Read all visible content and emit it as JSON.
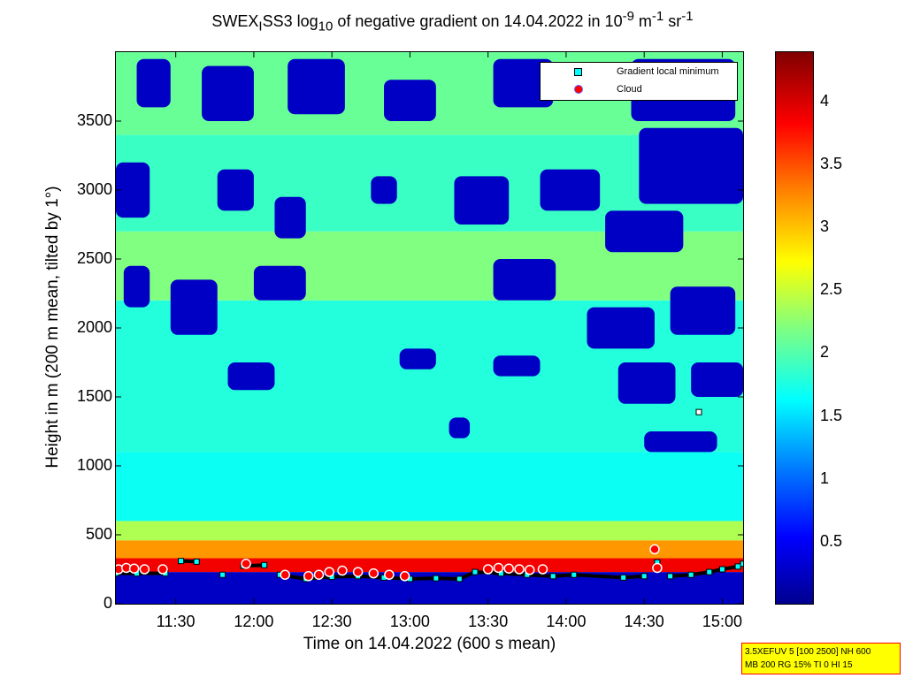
{
  "title_parts": {
    "t1": "SWEX",
    "t1_sub": "I",
    "t2": "SS3 log",
    "t2_sub": "10",
    "t3": " of negative gradient on 14.04.2022 in 10",
    "t3_sup": "-9",
    "t4": " m",
    "t4_sup": "-1",
    "t5": " sr",
    "t5_sup": "-1"
  },
  "xlabel": "Time on 14.04.2022 (600 s mean)",
  "ylabel": "Height in m (200 m mean, tilted by 1°)",
  "legend": {
    "min_label": "Gradient local minimum",
    "cloud_label": "Cloud",
    "min_color": "#00ffff",
    "cloud_color": "#ff0000"
  },
  "info": {
    "line1": "3.5XEFUV 5 [100 2500] NH 600",
    "line2": "MB 200 RG 15% TI 0 HI 15"
  },
  "chart_data": {
    "type": "heatmap",
    "x_tick_labels": [
      "11:30",
      "12:00",
      "12:30",
      "13:00",
      "13:30",
      "14:00",
      "14:30",
      "15:00"
    ],
    "x_tick_minutes": [
      690,
      720,
      750,
      780,
      810,
      840,
      870,
      900
    ],
    "xlim_minutes": [
      667,
      908
    ],
    "y_ticks": [
      0,
      500,
      1000,
      1500,
      2000,
      2500,
      3000,
      3500
    ],
    "ylim": [
      0,
      4000
    ],
    "colorbar_ticks": [
      0.5,
      1,
      1.5,
      2,
      2.5,
      3,
      3.5,
      4
    ],
    "colorbar_range": [
      0,
      4.4
    ],
    "colormap": "jet",
    "field_bands": [
      {
        "from": 0,
        "to": 230,
        "level": 0.3
      },
      {
        "from": 230,
        "to": 330,
        "level": 3.9
      },
      {
        "from": 330,
        "to": 460,
        "level": 3.2
      },
      {
        "from": 460,
        "to": 600,
        "level": 2.4
      },
      {
        "from": 600,
        "to": 1100,
        "level": 1.7
      },
      {
        "from": 1100,
        "to": 2200,
        "level": 1.8
      },
      {
        "from": 2200,
        "to": 2700,
        "level": 2.2
      },
      {
        "from": 2700,
        "to": 3400,
        "level": 1.9
      },
      {
        "from": 3400,
        "to": 4000,
        "level": 2.1
      }
    ],
    "low_patches": [
      {
        "x0": 675,
        "x1": 688,
        "y0": 3600,
        "y1": 3950
      },
      {
        "x0": 700,
        "x1": 720,
        "y0": 3500,
        "y1": 3900
      },
      {
        "x0": 733,
        "x1": 755,
        "y0": 3550,
        "y1": 3950
      },
      {
        "x0": 770,
        "x1": 790,
        "y0": 3500,
        "y1": 3800
      },
      {
        "x0": 812,
        "x1": 835,
        "y0": 3600,
        "y1": 3950
      },
      {
        "x0": 865,
        "x1": 905,
        "y0": 3500,
        "y1": 3950
      },
      {
        "x0": 667,
        "x1": 680,
        "y0": 2800,
        "y1": 3200
      },
      {
        "x0": 706,
        "x1": 720,
        "y0": 2850,
        "y1": 3150
      },
      {
        "x0": 728,
        "x1": 740,
        "y0": 2650,
        "y1": 2950
      },
      {
        "x0": 765,
        "x1": 775,
        "y0": 2900,
        "y1": 3100
      },
      {
        "x0": 797,
        "x1": 818,
        "y0": 2750,
        "y1": 3100
      },
      {
        "x0": 830,
        "x1": 853,
        "y0": 2850,
        "y1": 3150
      },
      {
        "x0": 855,
        "x1": 885,
        "y0": 2550,
        "y1": 2850
      },
      {
        "x0": 868,
        "x1": 908,
        "y0": 2900,
        "y1": 3450
      },
      {
        "x0": 670,
        "x1": 680,
        "y0": 2150,
        "y1": 2450
      },
      {
        "x0": 688,
        "x1": 706,
        "y0": 1950,
        "y1": 2350
      },
      {
        "x0": 720,
        "x1": 740,
        "y0": 2200,
        "y1": 2450
      },
      {
        "x0": 812,
        "x1": 836,
        "y0": 2200,
        "y1": 2500
      },
      {
        "x0": 848,
        "x1": 874,
        "y0": 1850,
        "y1": 2150
      },
      {
        "x0": 880,
        "x1": 905,
        "y0": 1950,
        "y1": 2300
      },
      {
        "x0": 710,
        "x1": 728,
        "y0": 1550,
        "y1": 1750
      },
      {
        "x0": 776,
        "x1": 790,
        "y0": 1700,
        "y1": 1850
      },
      {
        "x0": 812,
        "x1": 830,
        "y0": 1650,
        "y1": 1800
      },
      {
        "x0": 860,
        "x1": 882,
        "y0": 1450,
        "y1": 1750
      },
      {
        "x0": 888,
        "x1": 908,
        "y0": 1500,
        "y1": 1750
      },
      {
        "x0": 795,
        "x1": 803,
        "y0": 1200,
        "y1": 1350
      },
      {
        "x0": 870,
        "x1": 898,
        "y0": 1100,
        "y1": 1250
      }
    ],
    "series": [
      {
        "name": "Gradient local minimum",
        "x": [
          667,
          675,
          686,
          692,
          698,
          708,
          716,
          724,
          730,
          740,
          750,
          760,
          770,
          780,
          790,
          799,
          805,
          815,
          825,
          835,
          843,
          862,
          870,
          875,
          880,
          888,
          895,
          900,
          906,
          908
        ],
        "y": [
          220,
          220,
          220,
          310,
          305,
          210,
          275,
          280,
          210,
          180,
          195,
          200,
          190,
          180,
          185,
          180,
          230,
          220,
          210,
          200,
          210,
          190,
          200,
          300,
          200,
          210,
          230,
          250,
          270,
          290
        ]
      },
      {
        "name": "Cloud",
        "x": [
          668,
          671,
          674,
          678,
          685,
          717,
          732,
          741,
          745,
          749,
          754,
          760,
          766,
          772,
          778,
          810,
          814,
          818,
          822,
          826,
          831,
          874,
          875
        ],
        "y": [
          250,
          260,
          255,
          250,
          250,
          290,
          210,
          200,
          210,
          230,
          240,
          230,
          220,
          210,
          200,
          250,
          260,
          255,
          250,
          245,
          250,
          395,
          260
        ]
      }
    ],
    "isolated_minimum": {
      "x": 891,
      "y": 1390
    }
  }
}
